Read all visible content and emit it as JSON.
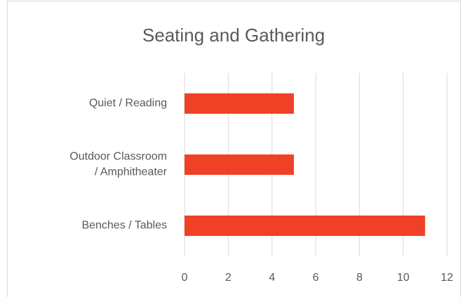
{
  "chart_data": {
    "type": "bar",
    "orientation": "horizontal",
    "title": "Seating and Gathering",
    "categories": [
      "Quiet / Reading",
      "Outdoor Classroom / Amphitheater",
      "Benches / Tables"
    ],
    "values": [
      5,
      5,
      11
    ],
    "color": "#f04127",
    "xlim": [
      0,
      12
    ],
    "xticks": [
      0,
      2,
      4,
      6,
      8,
      10,
      12
    ],
    "grid": true
  }
}
